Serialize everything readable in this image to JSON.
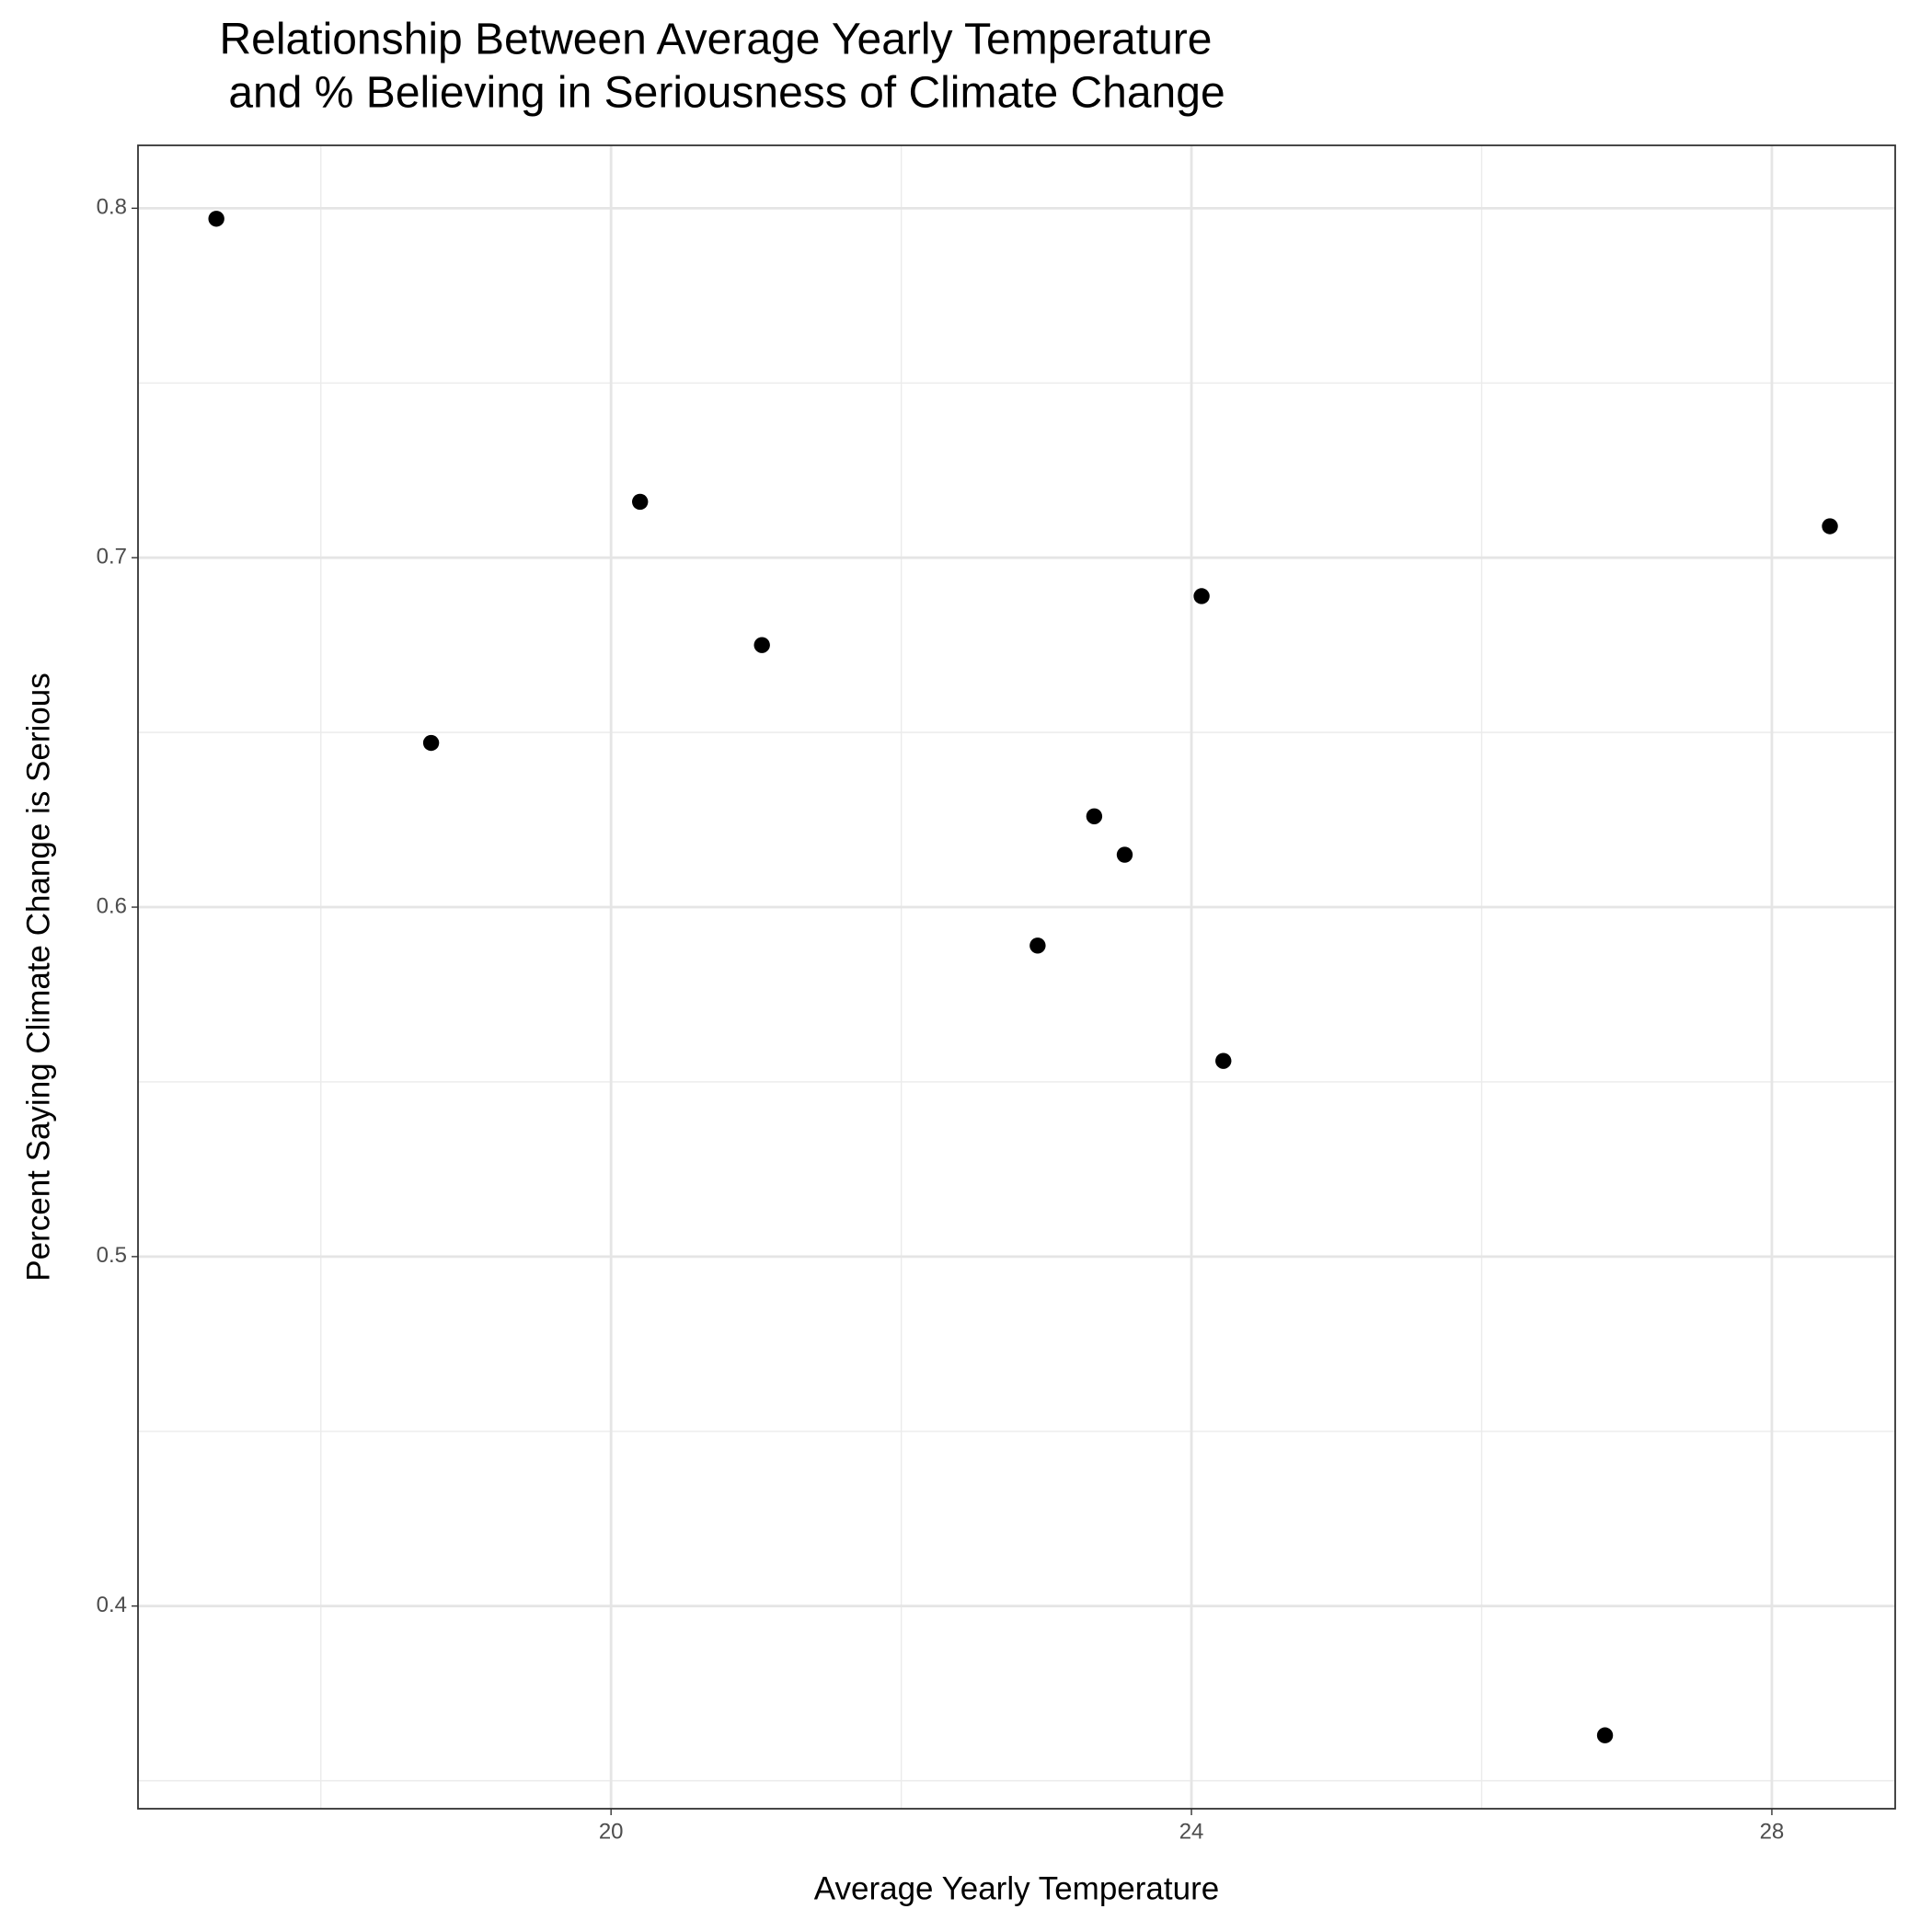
{
  "chart_data": {
    "type": "scatter",
    "title": [
      "Relationship Between Average Yearly Temperature",
      "and % Believing in Seriousness of Climate Change"
    ],
    "x_label": "Average Yearly Temperature",
    "y_label": "Percent Saying Climate Change is Serious",
    "x": [
      17.28,
      18.76,
      20.2,
      21.04,
      22.94,
      23.33,
      23.54,
      24.07,
      24.22,
      26.85,
      28.4
    ],
    "series": [
      {
        "color": "#000000",
        "values": [
          0.797,
          0.647,
          0.716,
          0.675,
          0.589,
          0.626,
          0.615,
          0.689,
          0.556,
          0.363,
          0.709
        ]
      }
    ],
    "xlim": [
      16.74,
      28.85
    ],
    "ylim": [
      0.342,
      0.818
    ],
    "xticks": [
      20,
      24,
      28
    ],
    "yticks": [
      0.4,
      0.5,
      0.6,
      0.7,
      0.8
    ],
    "x_minor_ticks": [
      18,
      22,
      26
    ],
    "y_minor_ticks": [
      0.35,
      0.45,
      0.55,
      0.65,
      0.75
    ],
    "grid": true
  }
}
